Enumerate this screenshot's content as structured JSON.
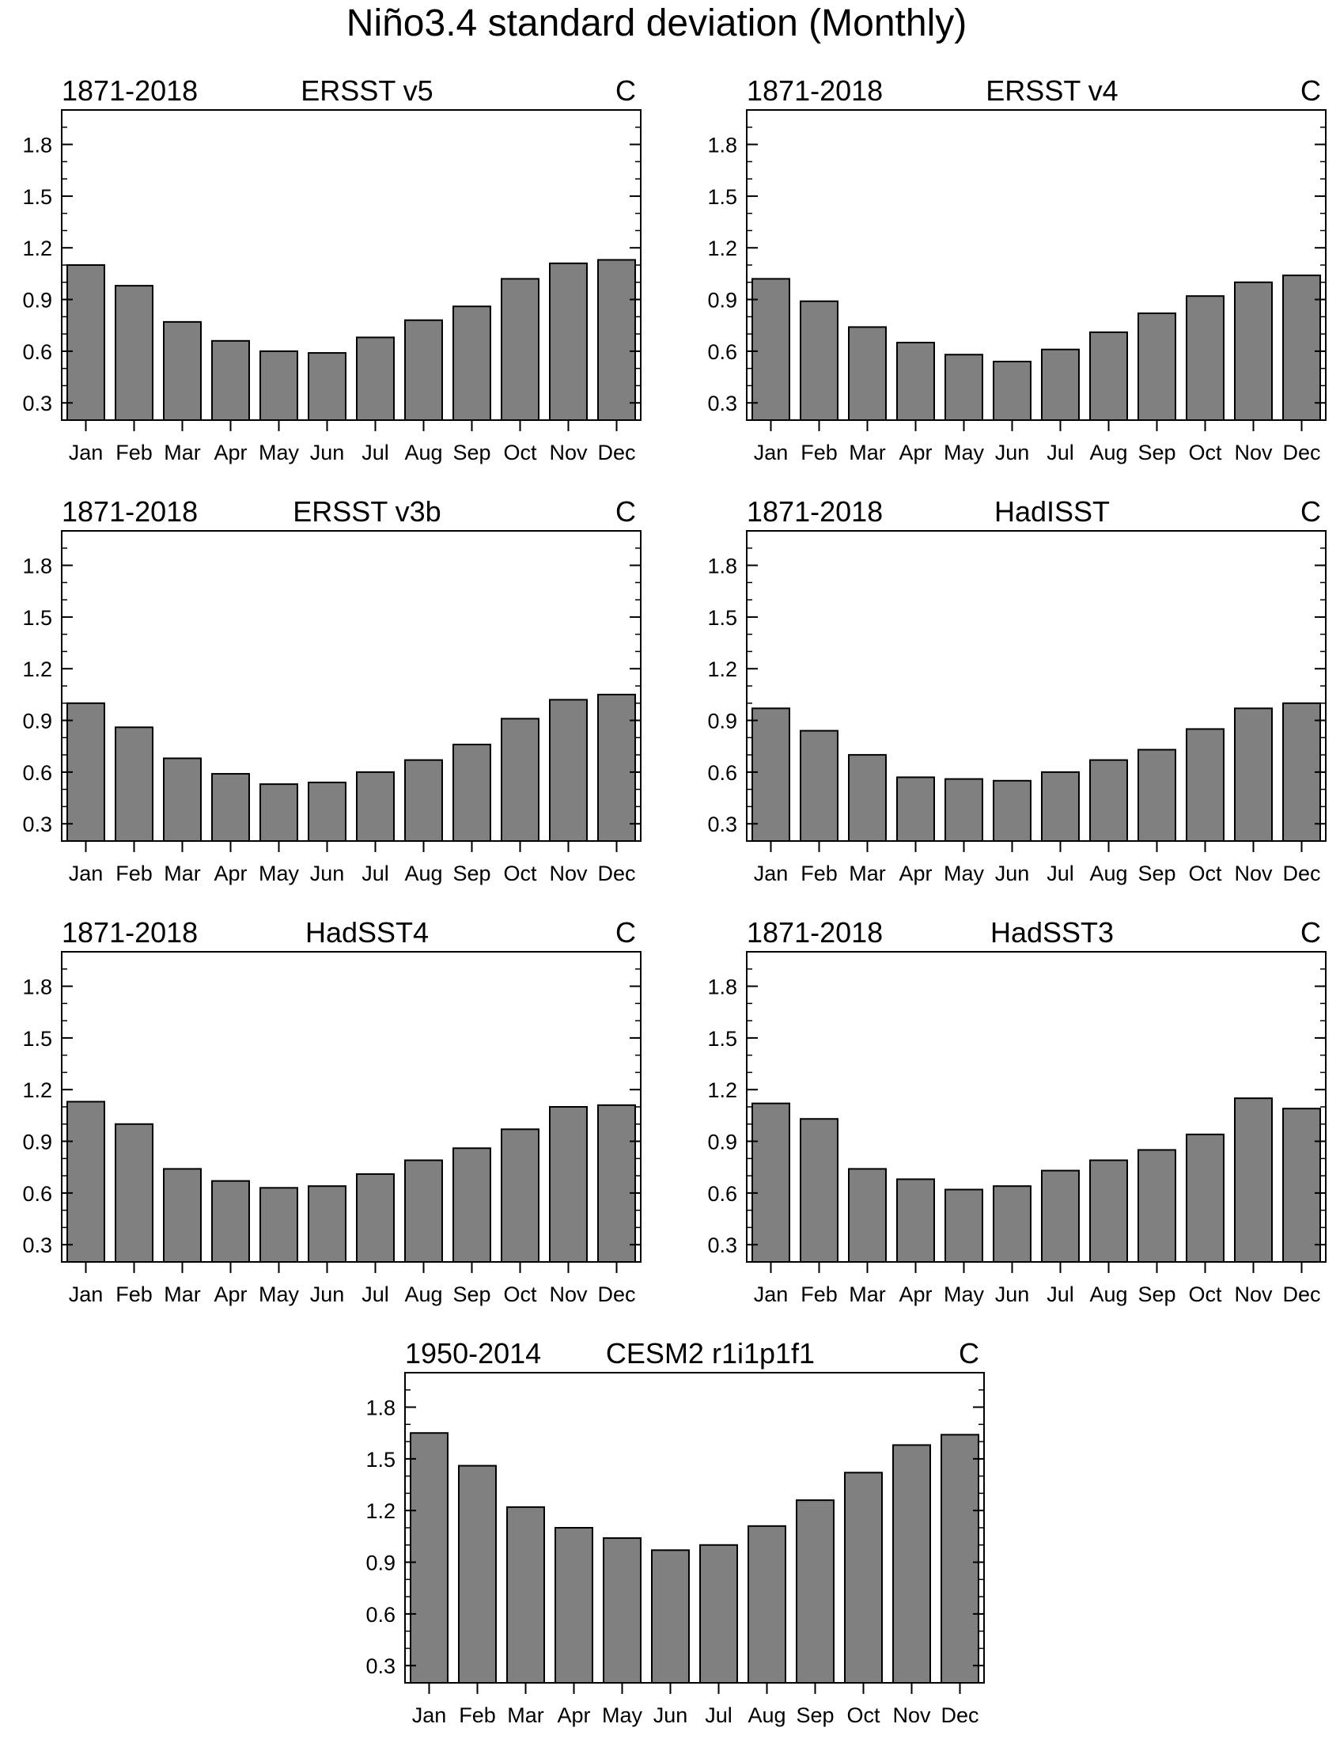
{
  "figure": {
    "title": "Niño3.4 standard deviation (Monthly)"
  },
  "chart_data": [
    {
      "type": "bar",
      "left_label": "1871-2018",
      "title": "ERSST v5",
      "unit_label": "C",
      "categories": [
        "Jan",
        "Feb",
        "Mar",
        "Apr",
        "May",
        "Jun",
        "Jul",
        "Aug",
        "Sep",
        "Oct",
        "Nov",
        "Dec"
      ],
      "values": [
        1.1,
        0.98,
        0.77,
        0.66,
        0.6,
        0.59,
        0.68,
        0.78,
        0.86,
        1.02,
        1.11,
        1.13
      ],
      "yticks": [
        "0.3",
        "0.6",
        "0.9",
        "1.2",
        "1.5",
        "1.8"
      ],
      "ylim": [
        0.2,
        2.0
      ],
      "bar_color": "#808080"
    },
    {
      "type": "bar",
      "left_label": "1871-2018",
      "title": "ERSST v4",
      "unit_label": "C",
      "categories": [
        "Jan",
        "Feb",
        "Mar",
        "Apr",
        "May",
        "Jun",
        "Jul",
        "Aug",
        "Sep",
        "Oct",
        "Nov",
        "Dec"
      ],
      "values": [
        1.02,
        0.89,
        0.74,
        0.65,
        0.58,
        0.54,
        0.61,
        0.71,
        0.82,
        0.92,
        1.0,
        1.04
      ],
      "yticks": [
        "0.3",
        "0.6",
        "0.9",
        "1.2",
        "1.5",
        "1.8"
      ],
      "ylim": [
        0.2,
        2.0
      ],
      "bar_color": "#808080"
    },
    {
      "type": "bar",
      "left_label": "1871-2018",
      "title": "ERSST v3b",
      "unit_label": "C",
      "categories": [
        "Jan",
        "Feb",
        "Mar",
        "Apr",
        "May",
        "Jun",
        "Jul",
        "Aug",
        "Sep",
        "Oct",
        "Nov",
        "Dec"
      ],
      "values": [
        1.0,
        0.86,
        0.68,
        0.59,
        0.53,
        0.54,
        0.6,
        0.67,
        0.76,
        0.91,
        1.02,
        1.05
      ],
      "yticks": [
        "0.3",
        "0.6",
        "0.9",
        "1.2",
        "1.5",
        "1.8"
      ],
      "ylim": [
        0.2,
        2.0
      ],
      "bar_color": "#808080"
    },
    {
      "type": "bar",
      "left_label": "1871-2018",
      "title": "HadISST",
      "unit_label": "C",
      "categories": [
        "Jan",
        "Feb",
        "Mar",
        "Apr",
        "May",
        "Jun",
        "Jul",
        "Aug",
        "Sep",
        "Oct",
        "Nov",
        "Dec"
      ],
      "values": [
        0.97,
        0.84,
        0.7,
        0.57,
        0.56,
        0.55,
        0.6,
        0.67,
        0.73,
        0.85,
        0.97,
        1.0
      ],
      "yticks": [
        "0.3",
        "0.6",
        "0.9",
        "1.2",
        "1.5",
        "1.8"
      ],
      "ylim": [
        0.2,
        2.0
      ],
      "bar_color": "#808080"
    },
    {
      "type": "bar",
      "left_label": "1871-2018",
      "title": "HadSST4",
      "unit_label": "C",
      "categories": [
        "Jan",
        "Feb",
        "Mar",
        "Apr",
        "May",
        "Jun",
        "Jul",
        "Aug",
        "Sep",
        "Oct",
        "Nov",
        "Dec"
      ],
      "values": [
        1.13,
        1.0,
        0.74,
        0.67,
        0.63,
        0.64,
        0.71,
        0.79,
        0.86,
        0.97,
        1.1,
        1.11
      ],
      "yticks": [
        "0.3",
        "0.6",
        "0.9",
        "1.2",
        "1.5",
        "1.8"
      ],
      "ylim": [
        0.2,
        2.0
      ],
      "bar_color": "#808080"
    },
    {
      "type": "bar",
      "left_label": "1871-2018",
      "title": "HadSST3",
      "unit_label": "C",
      "categories": [
        "Jan",
        "Feb",
        "Mar",
        "Apr",
        "May",
        "Jun",
        "Jul",
        "Aug",
        "Sep",
        "Oct",
        "Nov",
        "Dec"
      ],
      "values": [
        1.12,
        1.03,
        0.74,
        0.68,
        0.62,
        0.64,
        0.73,
        0.79,
        0.85,
        0.94,
        1.15,
        1.09
      ],
      "yticks": [
        "0.3",
        "0.6",
        "0.9",
        "1.2",
        "1.5",
        "1.8"
      ],
      "ylim": [
        0.2,
        2.0
      ],
      "bar_color": "#808080"
    },
    {
      "type": "bar",
      "left_label": "1950-2014",
      "title": "CESM2 r1i1p1f1",
      "unit_label": "C",
      "categories": [
        "Jan",
        "Feb",
        "Mar",
        "Apr",
        "May",
        "Jun",
        "Jul",
        "Aug",
        "Sep",
        "Oct",
        "Nov",
        "Dec"
      ],
      "values": [
        1.65,
        1.46,
        1.22,
        1.1,
        1.04,
        0.97,
        1.0,
        1.11,
        1.26,
        1.42,
        1.58,
        1.64
      ],
      "yticks": [
        "0.3",
        "0.6",
        "0.9",
        "1.2",
        "1.5",
        "1.8"
      ],
      "ylim": [
        0.2,
        2.0
      ],
      "bar_color": "#808080"
    }
  ]
}
